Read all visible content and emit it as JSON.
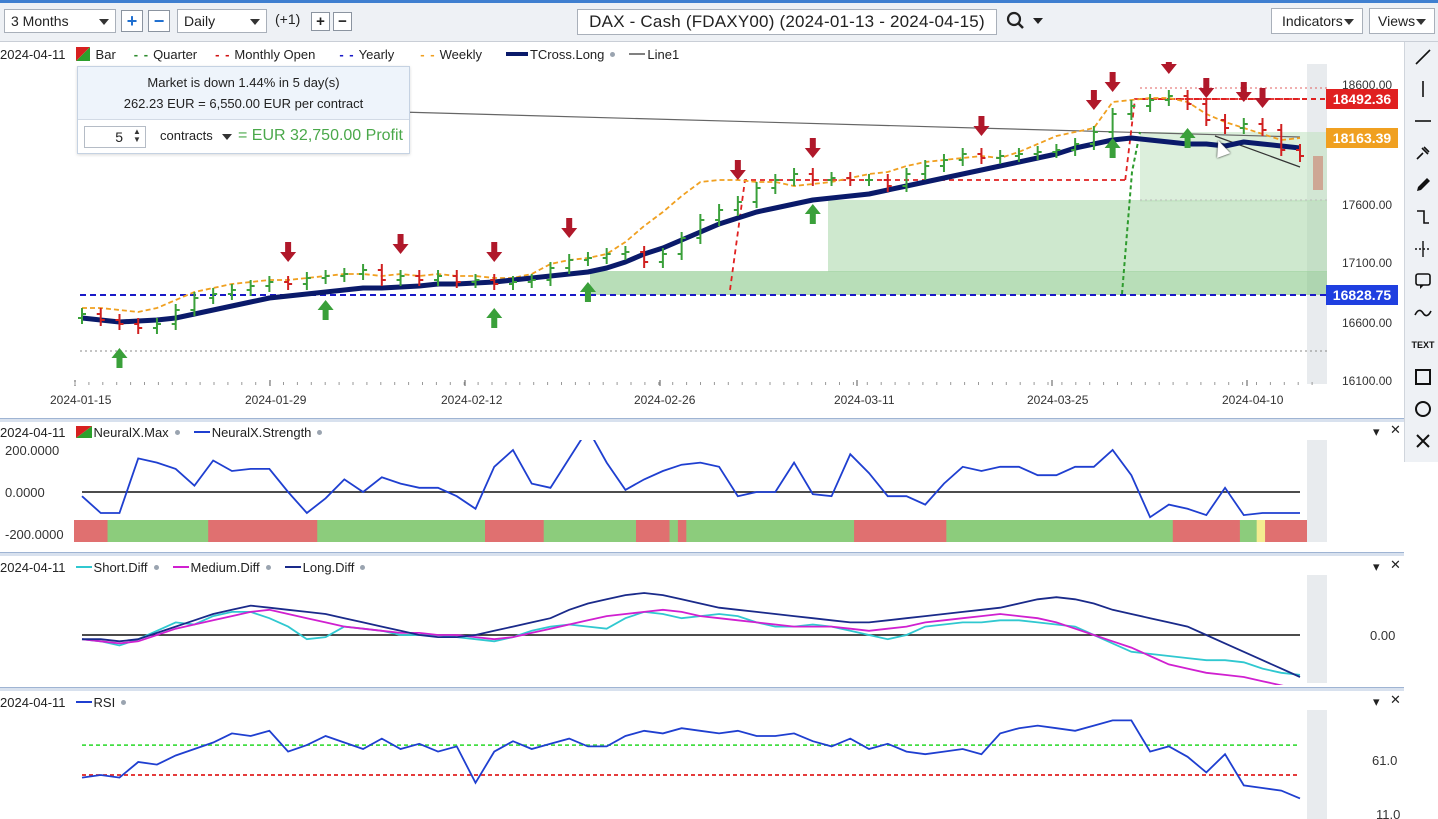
{
  "toolbar": {
    "range": "3 Months",
    "plus": "+",
    "minus": "−",
    "interval": "Daily",
    "offset": "(+1)",
    "title": "DAX - Cash (FDAXY00) (2024-01-13 - 2024-04-15)",
    "indicators": "Indicators",
    "views": "Views"
  },
  "main_legend": {
    "date": "2024-04-11",
    "items": [
      {
        "label": "Bar",
        "color": "#3aa03a"
      },
      {
        "label": "Quarter",
        "color": "#2e8b2e"
      },
      {
        "label": "Monthly Open",
        "color": "#d01010"
      },
      {
        "label": "Yearly",
        "color": "#1a1ac8"
      },
      {
        "label": "Weekly",
        "color": "#f0a020"
      },
      {
        "label": "TCross.Long",
        "color": "#0a1a6a"
      },
      {
        "label": "Line1",
        "color": "#555555"
      }
    ]
  },
  "info_box": {
    "line1": "Market is down 1.44% in 5 day(s)",
    "line2": "262.23 EUR = 6,550.00 EUR per contract",
    "quantity": "5",
    "unit": "contracts",
    "equals": "=",
    "profit": "EUR 32,750.00 Profit"
  },
  "price_tags": [
    {
      "value": "18492.36",
      "color": "#e02020"
    },
    {
      "value": "18163.39",
      "color": "#f0a020"
    },
    {
      "value": "16828.75",
      "color": "#1f3fe0"
    }
  ],
  "price_axis": [
    "18600.00",
    "17600.00",
    "17100.00",
    "16600.00",
    "16100.00"
  ],
  "date_axis": [
    "2024-01-15",
    "2024-01-29",
    "2024-02-12",
    "2024-02-26",
    "2024-03-11",
    "2024-03-25",
    "2024-04-10"
  ],
  "neural_panel": {
    "date": "2024-04-11",
    "items": [
      {
        "label": "NeuralX.Max",
        "color": "#c02020"
      },
      {
        "label": "NeuralX.Strength",
        "color": "#1f3fd0"
      }
    ],
    "axis": [
      "200.0000",
      "0.0000",
      "-200.0000"
    ],
    "strength": [
      -20,
      -100,
      -100,
      160,
      140,
      110,
      30,
      150,
      100,
      110,
      110,
      0,
      -100,
      -30,
      60,
      0,
      70,
      40,
      20,
      20,
      -20,
      -80,
      120,
      200,
      40,
      20,
      160,
      300,
      140,
      10,
      60,
      100,
      130,
      140,
      120,
      -20,
      0,
      0,
      140,
      -10,
      -20,
      180,
      90,
      -20,
      -20,
      -60,
      40,
      120,
      100,
      120,
      120,
      80,
      80,
      120,
      120,
      200,
      80,
      -120,
      -60,
      -80,
      -110,
      20,
      -110,
      -100,
      -100,
      -100
    ],
    "color_bands": [
      {
        "color": "red",
        "span": 4
      },
      {
        "color": "green",
        "span": 12
      },
      {
        "color": "red",
        "span": 13
      },
      {
        "color": "green",
        "span": 20
      },
      {
        "color": "red",
        "span": 7
      },
      {
        "color": "green",
        "span": 11
      },
      {
        "color": "red",
        "span": 4
      },
      {
        "color": "green",
        "span": 1
      },
      {
        "color": "red",
        "span": 1
      },
      {
        "color": "green",
        "span": 20
      },
      {
        "color": "red",
        "span": 11
      },
      {
        "color": "green",
        "span": 27
      },
      {
        "color": "red",
        "span": 8
      },
      {
        "color": "green",
        "span": 2
      },
      {
        "color": "yellow",
        "span": 1
      },
      {
        "color": "red",
        "span": 5
      }
    ]
  },
  "diff_panel": {
    "date": "2024-04-11",
    "items": [
      {
        "label": "Short.Diff",
        "color": "#30c8d0"
      },
      {
        "label": "Medium.Diff",
        "color": "#d020d0"
      },
      {
        "label": "Long.Diff",
        "color": "#1a2a8a"
      }
    ],
    "axis": [
      "0.00"
    ],
    "short": [
      -10,
      -15,
      -25,
      -10,
      10,
      30,
      25,
      45,
      55,
      55,
      40,
      20,
      -10,
      -5,
      20,
      15,
      10,
      0,
      0,
      0,
      -5,
      -10,
      -15,
      -5,
      10,
      20,
      25,
      20,
      15,
      40,
      55,
      50,
      40,
      45,
      50,
      45,
      30,
      20,
      20,
      25,
      20,
      10,
      0,
      -10,
      0,
      20,
      25,
      30,
      30,
      35,
      35,
      30,
      25,
      20,
      0,
      -20,
      -40,
      -45,
      -50,
      -55,
      -60,
      -60,
      -65,
      -80,
      -90,
      -95
    ],
    "medium": [
      -10,
      -15,
      -20,
      -15,
      0,
      15,
      25,
      35,
      45,
      55,
      60,
      50,
      40,
      30,
      20,
      15,
      10,
      5,
      5,
      0,
      0,
      -5,
      -10,
      -5,
      5,
      15,
      25,
      35,
      45,
      50,
      55,
      60,
      55,
      45,
      40,
      35,
      30,
      25,
      20,
      20,
      20,
      15,
      10,
      15,
      20,
      30,
      35,
      40,
      45,
      50,
      45,
      40,
      30,
      15,
      0,
      -15,
      -30,
      -50,
      -70,
      -80,
      -90,
      -95,
      -100,
      -110,
      -120,
      -130
    ],
    "long": [
      -10,
      -10,
      -15,
      -10,
      5,
      20,
      35,
      50,
      60,
      70,
      65,
      60,
      55,
      50,
      40,
      30,
      20,
      10,
      0,
      -5,
      -5,
      0,
      10,
      20,
      30,
      40,
      60,
      75,
      85,
      95,
      100,
      95,
      85,
      75,
      65,
      60,
      55,
      50,
      45,
      40,
      35,
      30,
      30,
      35,
      40,
      45,
      50,
      55,
      60,
      65,
      75,
      85,
      90,
      85,
      75,
      60,
      50,
      40,
      30,
      20,
      0,
      -20,
      -40,
      -60,
      -80,
      -100
    ]
  },
  "rsi_panel": {
    "date": "2024-04-11",
    "items": [
      {
        "label": "RSI",
        "color": "#1f3fd0"
      }
    ],
    "axis": [
      "61.0",
      "11.0"
    ],
    "rsi": [
      38,
      40,
      38,
      50,
      48,
      55,
      60,
      65,
      72,
      70,
      74,
      58,
      63,
      70,
      65,
      60,
      68,
      60,
      64,
      58,
      62,
      34,
      58,
      66,
      60,
      64,
      68,
      62,
      62,
      70,
      74,
      72,
      76,
      74,
      72,
      74,
      70,
      70,
      72,
      66,
      62,
      68,
      60,
      64,
      58,
      56,
      58,
      60,
      56,
      72,
      76,
      78,
      76,
      74,
      78,
      82,
      82,
      58,
      62,
      54,
      42,
      56,
      32,
      30,
      28,
      22
    ]
  }
}
